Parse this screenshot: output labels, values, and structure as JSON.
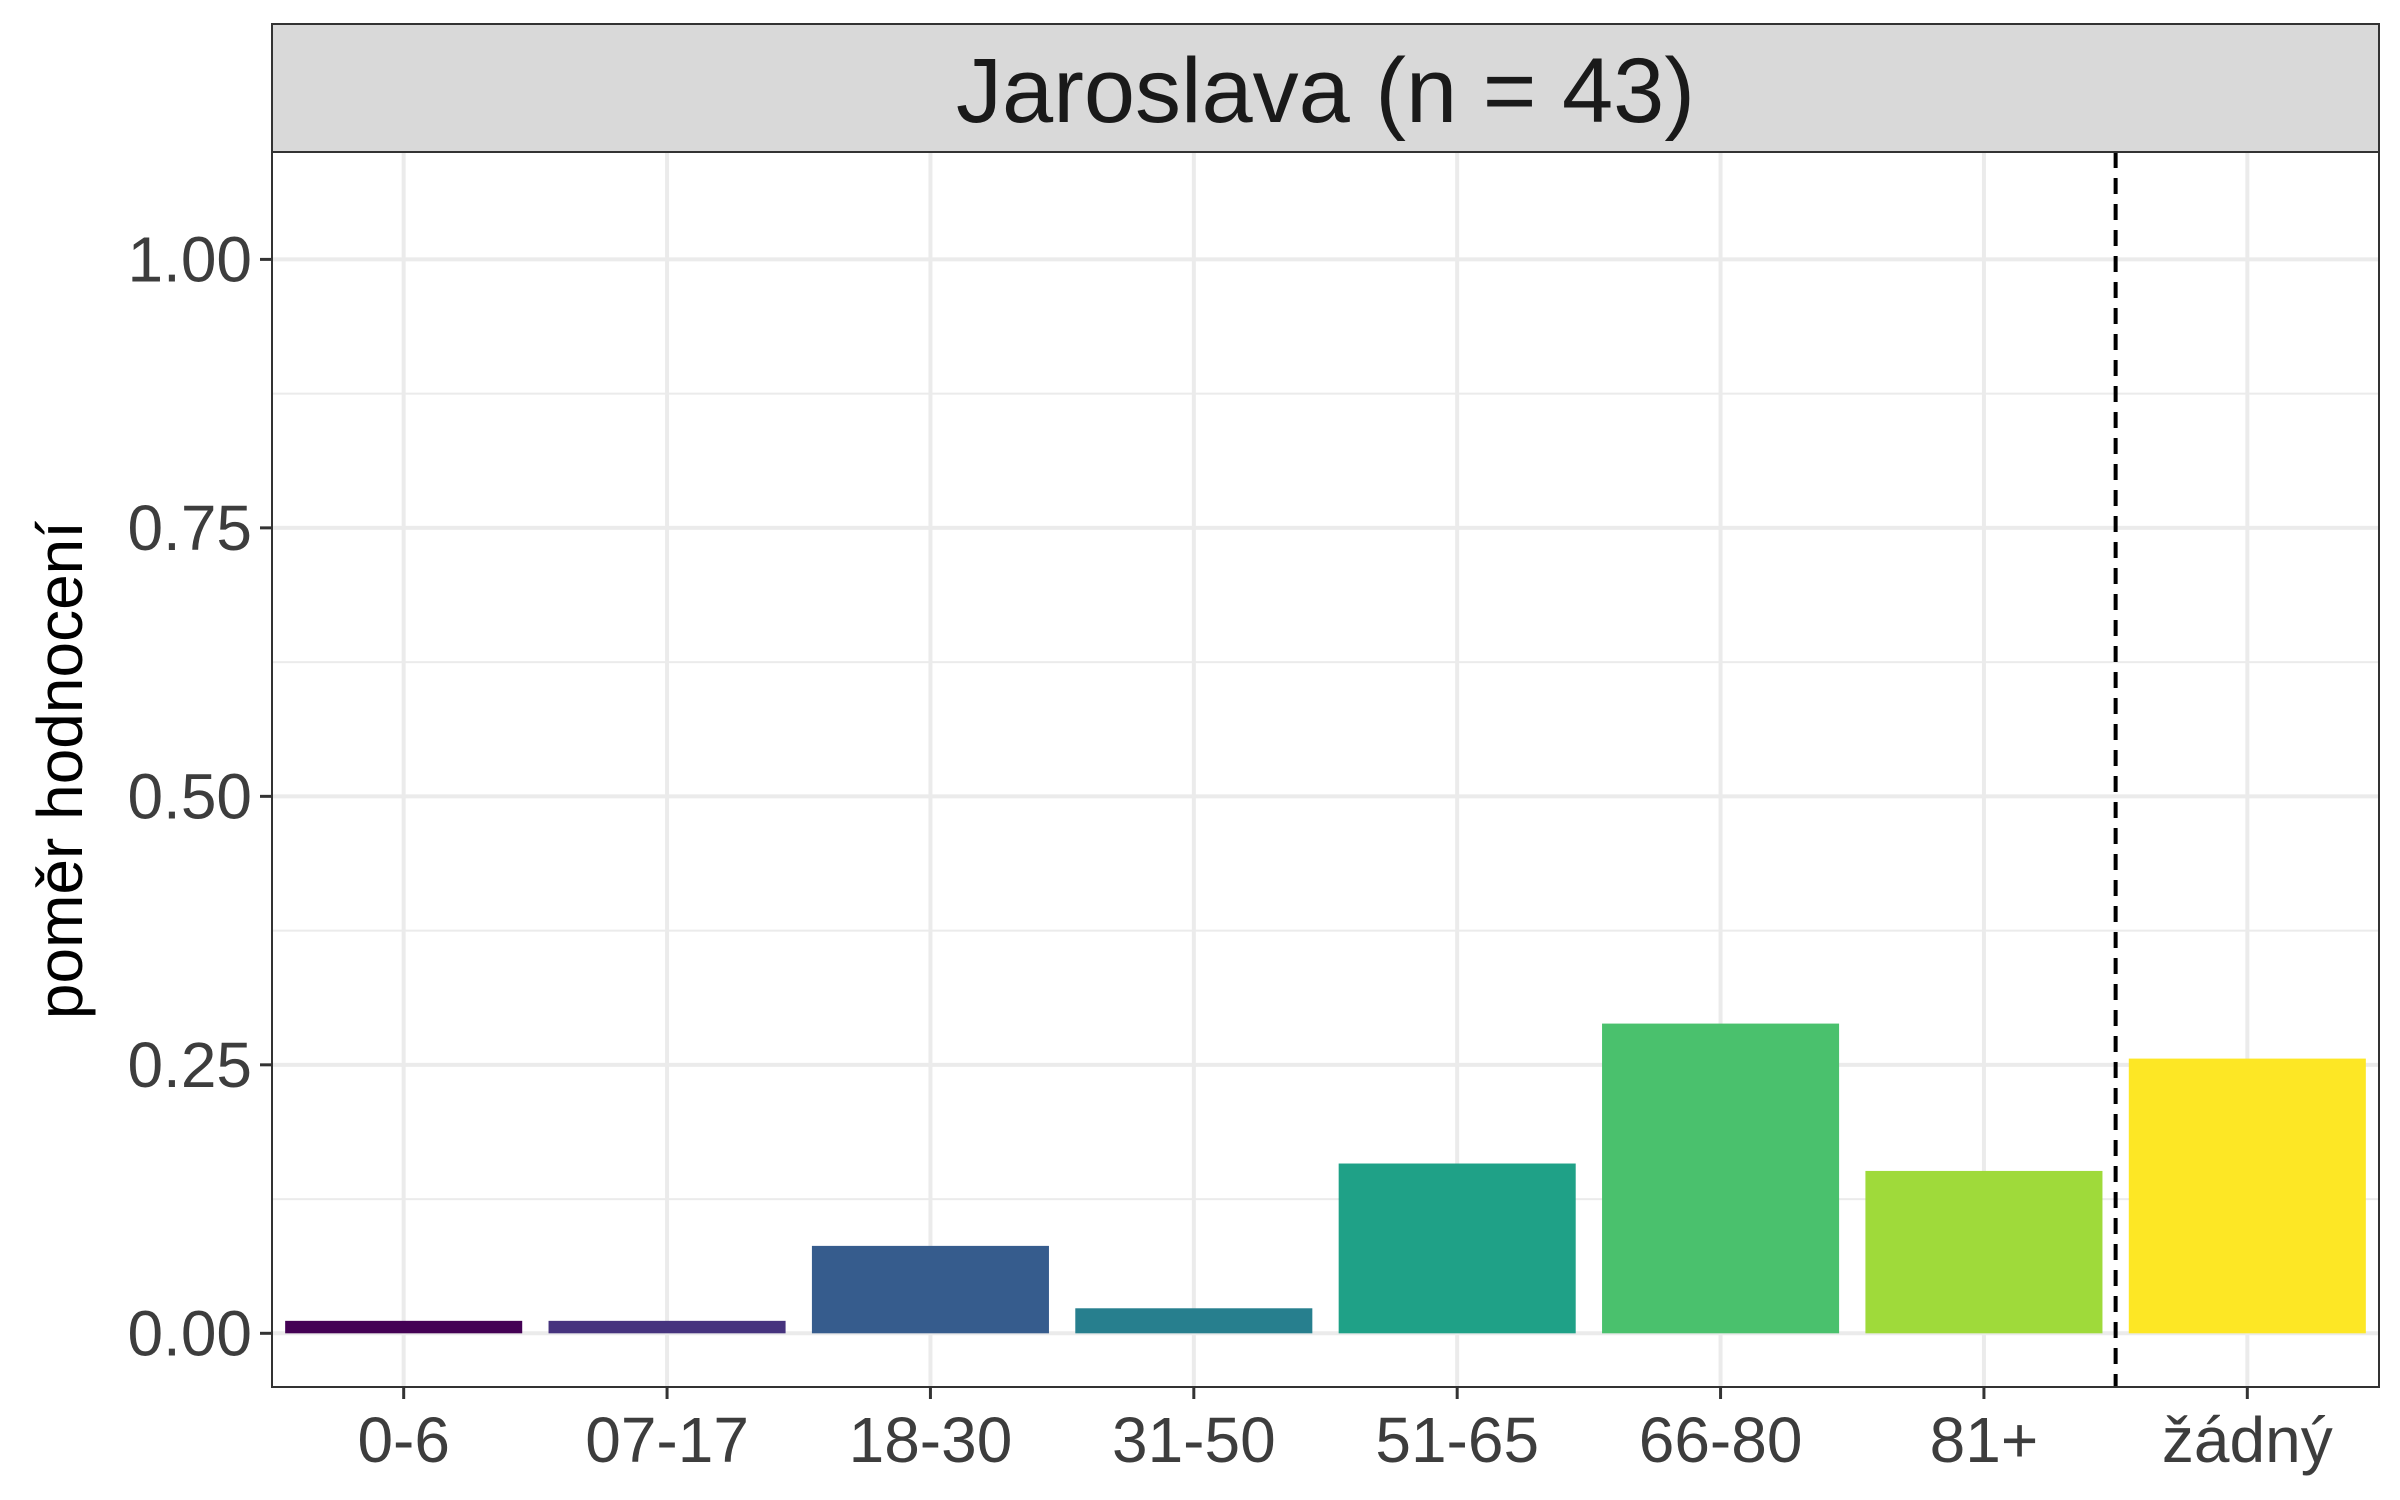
{
  "chart_data": {
    "type": "bar",
    "facet_title": "Jaroslava (n = 43)",
    "xlabel": "",
    "ylabel": "poměr hodnocení",
    "categories": [
      "0-6",
      "07-17",
      "18-30",
      "31-50",
      "51-65",
      "66-80",
      "81+",
      "žádný"
    ],
    "values": [
      0.0116,
      0.0116,
      0.0814,
      0.0233,
      0.1581,
      0.2884,
      0.1512,
      0.2558
    ],
    "colors": [
      "#440154",
      "#46337E",
      "#365C8D",
      "#277F8E",
      "#1FA187",
      "#4AC16D",
      "#9FDA3A",
      "#FDE725"
    ],
    "ylim": [
      -0.05,
      1.1
    ],
    "yticks": [
      0.0,
      0.25,
      0.5,
      0.75,
      1.0
    ],
    "ytick_labels": [
      "0.00",
      "0.25",
      "0.50",
      "0.75",
      "1.00"
    ],
    "grid": true,
    "reference_line": {
      "between": [
        "81+",
        "žádný"
      ],
      "style": "dashed"
    }
  }
}
